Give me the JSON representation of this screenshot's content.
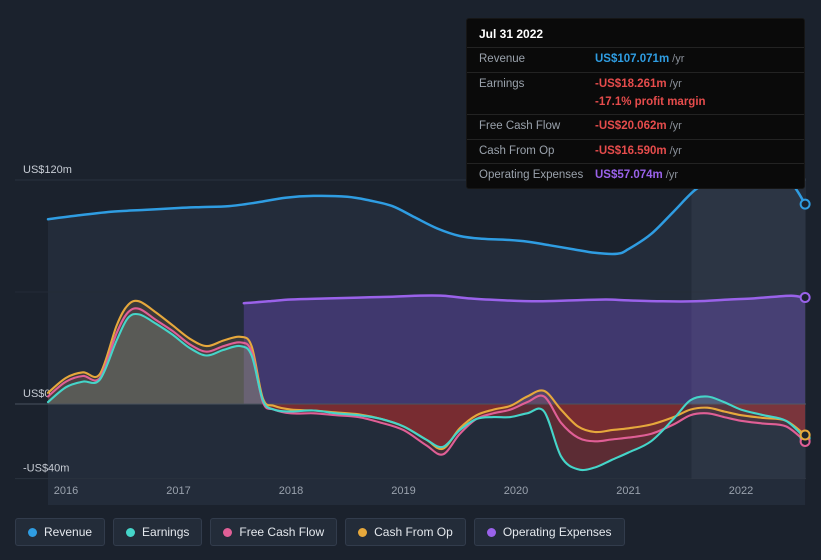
{
  "tooltip": {
    "date": "Jul 31 2022",
    "rows": [
      {
        "label": "Revenue",
        "value": "US$107.071m",
        "suffix": "/yr",
        "color": "#2f9de2"
      },
      {
        "label": "Earnings",
        "value": "-US$18.261m",
        "suffix": "/yr",
        "color": "#e64c4c",
        "extra": "-17.1% profit margin"
      },
      {
        "label": "Free Cash Flow",
        "value": "-US$20.062m",
        "suffix": "/yr",
        "color": "#e64c4c"
      },
      {
        "label": "Cash From Op",
        "value": "-US$16.590m",
        "suffix": "/yr",
        "color": "#e64c4c"
      },
      {
        "label": "Operating Expenses",
        "value": "US$57.074m",
        "suffix": "/yr",
        "color": "#9a62ea"
      }
    ]
  },
  "legend": {
    "items": [
      {
        "label": "Revenue",
        "color": "#2f9de2"
      },
      {
        "label": "Earnings",
        "color": "#45d5c9"
      },
      {
        "label": "Free Cash Flow",
        "color": "#e05f96"
      },
      {
        "label": "Cash From Op",
        "color": "#e6a83c"
      },
      {
        "label": "Operating Expenses",
        "color": "#9a62ea"
      }
    ]
  },
  "chart_data": {
    "type": "line",
    "unit": "US$ millions per year",
    "x_axis": {
      "ticks": [
        2016,
        2017,
        2018,
        2019,
        2020,
        2021,
        2022
      ],
      "range": [
        2015.84,
        2022.62
      ]
    },
    "y_axis": {
      "ticks": [
        {
          "value": 120,
          "label": "US$120m"
        },
        {
          "value": 0,
          "label": "US$0"
        },
        {
          "value": -40,
          "label": "-US$40m"
        }
      ],
      "range": [
        -54,
        131
      ]
    },
    "highlight_region": {
      "from": 2021.56,
      "to": 2022.62
    },
    "legend_position": "bottom",
    "series": [
      {
        "name": "Revenue",
        "color": "#2f9de2",
        "points": [
          [
            2015.84,
            99
          ],
          [
            2016.1,
            101
          ],
          [
            2016.4,
            103
          ],
          [
            2016.7,
            104
          ],
          [
            2017,
            105
          ],
          [
            2017.2,
            105.5
          ],
          [
            2017.45,
            106
          ],
          [
            2017.7,
            108
          ],
          [
            2017.95,
            110.5
          ],
          [
            2018.2,
            111.5
          ],
          [
            2018.5,
            111
          ],
          [
            2018.7,
            109
          ],
          [
            2018.9,
            106
          ],
          [
            2019.1,
            100
          ],
          [
            2019.3,
            94
          ],
          [
            2019.5,
            90
          ],
          [
            2019.7,
            88.5
          ],
          [
            2019.9,
            88
          ],
          [
            2020.1,
            87
          ],
          [
            2020.3,
            85
          ],
          [
            2020.5,
            83
          ],
          [
            2020.7,
            81
          ],
          [
            2020.9,
            80.5
          ],
          [
            2021,
            83
          ],
          [
            2021.2,
            91
          ],
          [
            2021.4,
            103
          ],
          [
            2021.6,
            115
          ],
          [
            2021.8,
            121
          ],
          [
            2021.95,
            119.5
          ],
          [
            2022.1,
            119
          ],
          [
            2022.3,
            121.5
          ],
          [
            2022.45,
            118
          ],
          [
            2022.57,
            107.07
          ]
        ]
      },
      {
        "name": "Earnings",
        "color": "#45d5c9",
        "points": [
          [
            2015.84,
            1
          ],
          [
            2016,
            9
          ],
          [
            2016.15,
            12
          ],
          [
            2016.3,
            13
          ],
          [
            2016.45,
            34
          ],
          [
            2016.55,
            46
          ],
          [
            2016.65,
            48
          ],
          [
            2016.8,
            43
          ],
          [
            2016.95,
            37
          ],
          [
            2017.1,
            30
          ],
          [
            2017.25,
            26
          ],
          [
            2017.4,
            29
          ],
          [
            2017.55,
            31
          ],
          [
            2017.65,
            26
          ],
          [
            2017.75,
            2
          ],
          [
            2017.85,
            -3
          ],
          [
            2018,
            -4
          ],
          [
            2018.2,
            -3.5
          ],
          [
            2018.4,
            -5
          ],
          [
            2018.6,
            -6
          ],
          [
            2018.8,
            -8
          ],
          [
            2019,
            -12
          ],
          [
            2019.2,
            -19
          ],
          [
            2019.35,
            -23
          ],
          [
            2019.5,
            -14
          ],
          [
            2019.65,
            -8
          ],
          [
            2019.8,
            -7
          ],
          [
            2019.95,
            -7
          ],
          [
            2020.1,
            -5
          ],
          [
            2020.25,
            -4
          ],
          [
            2020.4,
            -28
          ],
          [
            2020.55,
            -35
          ],
          [
            2020.7,
            -34
          ],
          [
            2020.85,
            -30
          ],
          [
            2021,
            -26
          ],
          [
            2021.2,
            -20
          ],
          [
            2021.4,
            -8
          ],
          [
            2021.55,
            2
          ],
          [
            2021.7,
            4
          ],
          [
            2021.85,
            1
          ],
          [
            2022,
            -3
          ],
          [
            2022.2,
            -6
          ],
          [
            2022.4,
            -9
          ],
          [
            2022.57,
            -18.26
          ]
        ]
      },
      {
        "name": "Free Cash Flow",
        "color": "#e05f96",
        "points": [
          [
            2015.84,
            4
          ],
          [
            2016,
            12
          ],
          [
            2016.15,
            15
          ],
          [
            2016.3,
            14
          ],
          [
            2016.45,
            38
          ],
          [
            2016.55,
            49
          ],
          [
            2016.65,
            51
          ],
          [
            2016.8,
            45
          ],
          [
            2016.95,
            39
          ],
          [
            2017.1,
            32
          ],
          [
            2017.25,
            28
          ],
          [
            2017.4,
            31
          ],
          [
            2017.55,
            33
          ],
          [
            2017.65,
            28
          ],
          [
            2017.75,
            1
          ],
          [
            2017.85,
            -3
          ],
          [
            2018,
            -5
          ],
          [
            2018.2,
            -5
          ],
          [
            2018.4,
            -6
          ],
          [
            2018.6,
            -7
          ],
          [
            2018.8,
            -10
          ],
          [
            2019,
            -14
          ],
          [
            2019.2,
            -22
          ],
          [
            2019.35,
            -27
          ],
          [
            2019.5,
            -16
          ],
          [
            2019.65,
            -8
          ],
          [
            2019.8,
            -5
          ],
          [
            2019.95,
            -3
          ],
          [
            2020.1,
            1
          ],
          [
            2020.25,
            4
          ],
          [
            2020.4,
            -10
          ],
          [
            2020.55,
            -18
          ],
          [
            2020.7,
            -20
          ],
          [
            2020.85,
            -19
          ],
          [
            2021,
            -18
          ],
          [
            2021.2,
            -16
          ],
          [
            2021.4,
            -11
          ],
          [
            2021.55,
            -6
          ],
          [
            2021.7,
            -5
          ],
          [
            2021.85,
            -7
          ],
          [
            2022,
            -9
          ],
          [
            2022.2,
            -10.5
          ],
          [
            2022.4,
            -12
          ],
          [
            2022.57,
            -20.06
          ]
        ]
      },
      {
        "name": "Cash From Op",
        "color": "#e6a83c",
        "points": [
          [
            2015.84,
            6
          ],
          [
            2016,
            14
          ],
          [
            2016.15,
            17
          ],
          [
            2016.3,
            16
          ],
          [
            2016.45,
            42
          ],
          [
            2016.55,
            53
          ],
          [
            2016.65,
            55
          ],
          [
            2016.8,
            49
          ],
          [
            2016.95,
            42
          ],
          [
            2017.1,
            35
          ],
          [
            2017.25,
            31
          ],
          [
            2017.4,
            34
          ],
          [
            2017.55,
            36
          ],
          [
            2017.65,
            31
          ],
          [
            2017.75,
            3
          ],
          [
            2017.85,
            -1
          ],
          [
            2018,
            -3
          ],
          [
            2018.2,
            -3.5
          ],
          [
            2018.4,
            -4.5
          ],
          [
            2018.6,
            -5.5
          ],
          [
            2018.8,
            -8
          ],
          [
            2019,
            -12
          ],
          [
            2019.2,
            -19
          ],
          [
            2019.35,
            -24
          ],
          [
            2019.5,
            -13
          ],
          [
            2019.65,
            -6
          ],
          [
            2019.8,
            -3
          ],
          [
            2019.95,
            -1
          ],
          [
            2020.1,
            4
          ],
          [
            2020.25,
            7
          ],
          [
            2020.4,
            -3
          ],
          [
            2020.55,
            -12
          ],
          [
            2020.7,
            -15
          ],
          [
            2020.85,
            -14
          ],
          [
            2021,
            -13
          ],
          [
            2021.2,
            -11
          ],
          [
            2021.4,
            -7
          ],
          [
            2021.55,
            -3
          ],
          [
            2021.7,
            -2
          ],
          [
            2021.85,
            -4
          ],
          [
            2022,
            -6
          ],
          [
            2022.2,
            -7.5
          ],
          [
            2022.4,
            -9
          ],
          [
            2022.57,
            -16.59
          ]
        ]
      },
      {
        "name": "Operating Expenses",
        "color": "#9a62ea",
        "points": [
          [
            2017.58,
            54
          ],
          [
            2017.8,
            55
          ],
          [
            2018,
            56
          ],
          [
            2018.3,
            56.5
          ],
          [
            2018.6,
            57
          ],
          [
            2018.9,
            57.5
          ],
          [
            2019.1,
            58
          ],
          [
            2019.35,
            58
          ],
          [
            2019.6,
            56.5
          ],
          [
            2019.9,
            55.5
          ],
          [
            2020.2,
            55
          ],
          [
            2020.5,
            55.5
          ],
          [
            2020.8,
            56
          ],
          [
            2021,
            55.5
          ],
          [
            2021.3,
            55
          ],
          [
            2021.6,
            55
          ],
          [
            2021.9,
            56
          ],
          [
            2022.1,
            56.5
          ],
          [
            2022.3,
            57.5
          ],
          [
            2022.45,
            58
          ],
          [
            2022.57,
            57.07
          ]
        ]
      }
    ]
  }
}
